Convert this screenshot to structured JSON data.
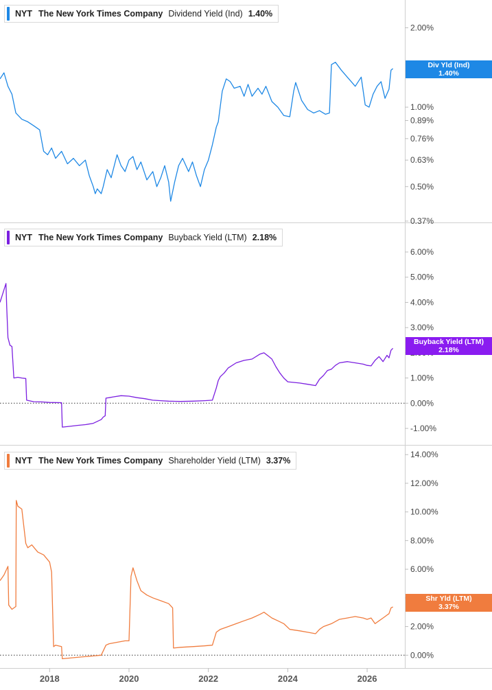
{
  "x_axis": {
    "tick_labels": [
      "2018",
      "2020",
      "2022",
      "2024",
      "2026"
    ],
    "range": [
      2016.75,
      2026.95
    ]
  },
  "panels": [
    {
      "id": "dividend",
      "legend": {
        "ticker": "NYT",
        "company": "The New York Times Company",
        "metric": "Dividend Yield (Ind)",
        "value": "1.40%"
      },
      "tag": {
        "line1": "Div Yld (Ind)",
        "line2": "1.40%"
      },
      "color": "#1e88e5",
      "tag_color": "#1e88e5"
    },
    {
      "id": "buyback",
      "legend": {
        "ticker": "NYT",
        "company": "The New York Times Company",
        "metric": "Buyback Yield (LTM)",
        "value": "2.18%"
      },
      "tag": {
        "line1": "Buyback Yield (LTM)",
        "line2": "2.18%"
      },
      "color": "#7b1fe0",
      "tag_color": "#8a1cf0"
    },
    {
      "id": "shareholder",
      "legend": {
        "ticker": "NYT",
        "company": "The New York Times Company",
        "metric": "Shareholder Yield (LTM)",
        "value": "3.37%"
      },
      "tag": {
        "line1": "Shr Yld (LTM)",
        "line2": "3.37%"
      },
      "color": "#f07c3e",
      "tag_color": "#f07c3e"
    }
  ],
  "chart_data": [
    {
      "type": "line",
      "title": "Dividend Yield (Ind)",
      "scale": "log",
      "ylim": [
        0.37,
        2.4
      ],
      "ytick_values": [
        2.0,
        1.0,
        0.89,
        0.76,
        0.63,
        0.5,
        0.37
      ],
      "ytick_labels": [
        "2.00%",
        "1.00%",
        "0.89%",
        "0.76%",
        "0.63%",
        "0.50%",
        "0.37%"
      ],
      "series": [
        {
          "name": "Dividend Yield (Ind)",
          "x": [
            2016.75,
            2016.85,
            2016.95,
            2017.05,
            2017.15,
            2017.3,
            2017.45,
            2017.6,
            2017.75,
            2017.85,
            2017.95,
            2018.05,
            2018.15,
            2018.3,
            2018.45,
            2018.6,
            2018.75,
            2018.9,
            2019.0,
            2019.1,
            2019.15,
            2019.2,
            2019.3,
            2019.35,
            2019.45,
            2019.55,
            2019.7,
            2019.8,
            2019.9,
            2020.0,
            2020.1,
            2020.2,
            2020.3,
            2020.45,
            2020.6,
            2020.7,
            2020.8,
            2020.9,
            2021.0,
            2021.05,
            2021.15,
            2021.25,
            2021.35,
            2021.5,
            2021.6,
            2021.7,
            2021.8,
            2021.9,
            2022.0,
            2022.1,
            2022.2,
            2022.25,
            2022.35,
            2022.45,
            2022.55,
            2022.65,
            2022.8,
            2022.9,
            2023.0,
            2023.1,
            2023.25,
            2023.35,
            2023.45,
            2023.6,
            2023.75,
            2023.9,
            2024.05,
            2024.15,
            2024.2,
            2024.35,
            2024.5,
            2024.65,
            2024.8,
            2024.95,
            2025.05,
            2025.1,
            2025.2,
            2025.35,
            2025.5,
            2025.6,
            2025.7,
            2025.85,
            2025.95,
            2026.05,
            2026.15,
            2026.25,
            2026.35,
            2026.45,
            2026.55,
            2026.6,
            2026.65
          ],
          "y": [
            1.28,
            1.35,
            1.2,
            1.12,
            0.95,
            0.9,
            0.88,
            0.85,
            0.82,
            0.68,
            0.66,
            0.7,
            0.64,
            0.68,
            0.61,
            0.64,
            0.6,
            0.63,
            0.55,
            0.5,
            0.47,
            0.49,
            0.47,
            0.5,
            0.58,
            0.54,
            0.66,
            0.6,
            0.57,
            0.63,
            0.65,
            0.58,
            0.62,
            0.53,
            0.57,
            0.5,
            0.54,
            0.6,
            0.52,
            0.44,
            0.52,
            0.6,
            0.64,
            0.57,
            0.62,
            0.55,
            0.5,
            0.58,
            0.63,
            0.72,
            0.84,
            0.88,
            1.15,
            1.28,
            1.25,
            1.18,
            1.2,
            1.1,
            1.22,
            1.1,
            1.18,
            1.12,
            1.2,
            1.05,
            1.0,
            0.93,
            0.92,
            1.15,
            1.24,
            1.06,
            0.98,
            0.95,
            0.97,
            0.94,
            0.95,
            1.45,
            1.48,
            1.38,
            1.3,
            1.25,
            1.2,
            1.3,
            1.02,
            1.0,
            1.12,
            1.2,
            1.25,
            1.08,
            1.17,
            1.38,
            1.4
          ]
        }
      ]
    },
    {
      "type": "line",
      "title": "Buyback Yield (LTM)",
      "scale": "linear",
      "ylim": [
        -1.6,
        6.9
      ],
      "ytick_values": [
        6,
        5,
        4,
        3,
        2,
        1,
        0,
        -1
      ],
      "ytick_labels": [
        "6.00%",
        "5.00%",
        "4.00%",
        "3.00%",
        "2.00%",
        "1.00%",
        "0.00%",
        "-1.00%"
      ],
      "reference_line": 0,
      "series": [
        {
          "name": "Buyback Yield (LTM)",
          "x": [
            2016.75,
            2016.8,
            2016.85,
            2016.9,
            2016.92,
            2016.95,
            2017.0,
            2017.05,
            2017.1,
            2017.2,
            2017.3,
            2017.4,
            2017.42,
            2017.6,
            2017.8,
            2018.0,
            2018.3,
            2018.32,
            2018.5,
            2018.7,
            2018.9,
            2019.1,
            2019.3,
            2019.35,
            2019.4,
            2019.42,
            2019.5,
            2019.6,
            2019.8,
            2020.0,
            2020.2,
            2020.4,
            2020.6,
            2020.8,
            2021.0,
            2021.3,
            2021.6,
            2021.9,
            2022.1,
            2022.2,
            2022.25,
            2022.3,
            2022.4,
            2022.5,
            2022.7,
            2022.9,
            2023.1,
            2023.3,
            2023.4,
            2023.5,
            2023.6,
            2023.7,
            2023.8,
            2023.9,
            2024.0,
            2024.3,
            2024.5,
            2024.7,
            2024.8,
            2024.9,
            2025.0,
            2025.1,
            2025.2,
            2025.3,
            2025.5,
            2025.7,
            2025.9,
            2026.0,
            2026.1,
            2026.2,
            2026.3,
            2026.4,
            2026.5,
            2026.55,
            2026.6,
            2026.65
          ],
          "y": [
            4.0,
            4.25,
            4.5,
            4.75,
            3.8,
            2.6,
            2.3,
            2.25,
            1.0,
            1.03,
            1.0,
            0.98,
            0.12,
            0.06,
            0.05,
            0.03,
            0.02,
            -0.95,
            -0.92,
            -0.88,
            -0.85,
            -0.8,
            -0.65,
            -0.55,
            -0.5,
            0.2,
            0.22,
            0.25,
            0.3,
            0.28,
            0.22,
            0.18,
            0.12,
            0.1,
            0.08,
            0.07,
            0.08,
            0.1,
            0.12,
            0.6,
            0.9,
            1.05,
            1.2,
            1.4,
            1.6,
            1.7,
            1.75,
            1.95,
            2.0,
            1.88,
            1.75,
            1.45,
            1.2,
            1.0,
            0.85,
            0.8,
            0.75,
            0.7,
            0.95,
            1.1,
            1.3,
            1.35,
            1.5,
            1.6,
            1.65,
            1.6,
            1.55,
            1.5,
            1.48,
            1.7,
            1.85,
            1.65,
            1.9,
            1.8,
            2.1,
            2.18
          ]
        }
      ]
    },
    {
      "type": "line",
      "title": "Shareholder Yield (LTM)",
      "scale": "linear",
      "ylim": [
        -0.8,
        14.2
      ],
      "ytick_values": [
        14,
        12,
        10,
        8,
        6,
        4,
        2,
        0
      ],
      "ytick_labels": [
        "14.00%",
        "12.00%",
        "10.00%",
        "8.00%",
        "6.00%",
        "4.00%",
        "2.00%",
        "0.00%"
      ],
      "reference_line": 0,
      "series": [
        {
          "name": "Shareholder Yield (LTM)",
          "x": [
            2016.75,
            2016.85,
            2016.95,
            2016.97,
            2017.05,
            2017.15,
            2017.16,
            2017.2,
            2017.3,
            2017.4,
            2017.45,
            2017.55,
            2017.7,
            2017.85,
            2018.0,
            2018.05,
            2018.1,
            2018.15,
            2018.3,
            2018.32,
            2018.5,
            2018.7,
            2018.9,
            2019.1,
            2019.3,
            2019.42,
            2019.5,
            2019.7,
            2019.9,
            2020.0,
            2020.05,
            2020.1,
            2020.2,
            2020.3,
            2020.45,
            2020.6,
            2020.8,
            2021.0,
            2021.1,
            2021.12,
            2021.3,
            2021.6,
            2021.9,
            2022.1,
            2022.2,
            2022.3,
            2022.5,
            2022.7,
            2022.9,
            2023.1,
            2023.3,
            2023.4,
            2023.5,
            2023.6,
            2023.75,
            2023.9,
            2024.05,
            2024.3,
            2024.5,
            2024.7,
            2024.8,
            2024.9,
            2025.0,
            2025.1,
            2025.3,
            2025.5,
            2025.7,
            2025.9,
            2026.0,
            2026.1,
            2026.2,
            2026.3,
            2026.4,
            2026.5,
            2026.55,
            2026.6,
            2026.65
          ],
          "y": [
            5.2,
            5.6,
            6.2,
            3.5,
            3.2,
            3.4,
            10.8,
            10.4,
            10.2,
            7.8,
            7.5,
            7.7,
            7.2,
            7.0,
            6.5,
            5.8,
            0.6,
            0.7,
            0.6,
            -0.25,
            -0.2,
            -0.15,
            -0.1,
            -0.05,
            0.0,
            0.7,
            0.8,
            0.9,
            1.0,
            1.0,
            5.5,
            6.1,
            5.2,
            4.5,
            4.2,
            4.0,
            3.8,
            3.6,
            3.3,
            0.5,
            0.55,
            0.6,
            0.65,
            0.7,
            1.6,
            1.8,
            2.0,
            2.2,
            2.4,
            2.6,
            2.85,
            3.0,
            2.8,
            2.6,
            2.4,
            2.2,
            1.8,
            1.7,
            1.6,
            1.5,
            1.8,
            2.0,
            2.1,
            2.2,
            2.5,
            2.6,
            2.7,
            2.6,
            2.5,
            2.6,
            2.2,
            2.4,
            2.6,
            2.8,
            2.9,
            3.3,
            3.37
          ]
        }
      ]
    }
  ]
}
